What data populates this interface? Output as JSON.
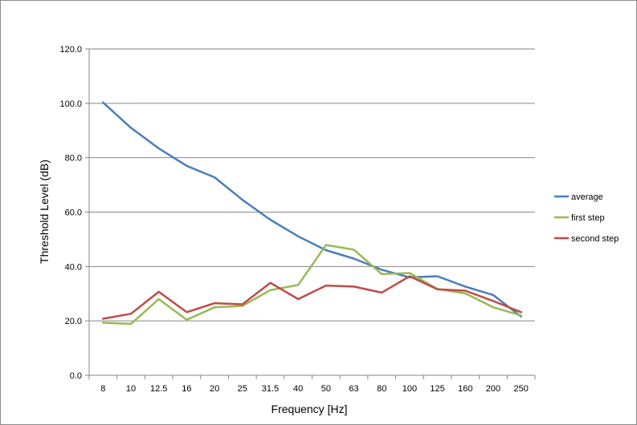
{
  "chart_data": {
    "type": "line",
    "xlabel": "Frequency [Hz]",
    "ylabel": "Threshold Level (dB)",
    "categories": [
      "8",
      "10",
      "12.5",
      "16",
      "20",
      "25",
      "31.5",
      "40",
      "50",
      "63",
      "80",
      "100",
      "125",
      "160",
      "200",
      "250"
    ],
    "ylim": [
      0,
      120
    ],
    "yticks": [
      "0.0",
      "20.0",
      "40.0",
      "60.0",
      "80.0",
      "100.0",
      "120.0"
    ],
    "grid": true,
    "legend_position": "right",
    "series": [
      {
        "name": "average",
        "color": "#4a7ebb",
        "values": [
          100.3,
          91.0,
          83.4,
          77.0,
          72.8,
          64.5,
          57.2,
          51.1,
          46.0,
          42.9,
          38.8,
          36.0,
          36.4,
          32.6,
          29.5,
          21.6
        ]
      },
      {
        "name": "first step",
        "color": "#98b954",
        "values": [
          19.3,
          18.9,
          28.0,
          20.4,
          25.0,
          25.5,
          31.3,
          33.2,
          47.9,
          46.2,
          37.2,
          37.6,
          31.7,
          30.1,
          25.0,
          22.0
        ]
      },
      {
        "name": "second step",
        "color": "#be4b48",
        "values": [
          20.8,
          22.6,
          30.7,
          23.2,
          26.5,
          26.1,
          34.0,
          28.0,
          33.0,
          32.6,
          30.4,
          36.4,
          31.6,
          31.1,
          27.3,
          23.2
        ]
      }
    ]
  }
}
